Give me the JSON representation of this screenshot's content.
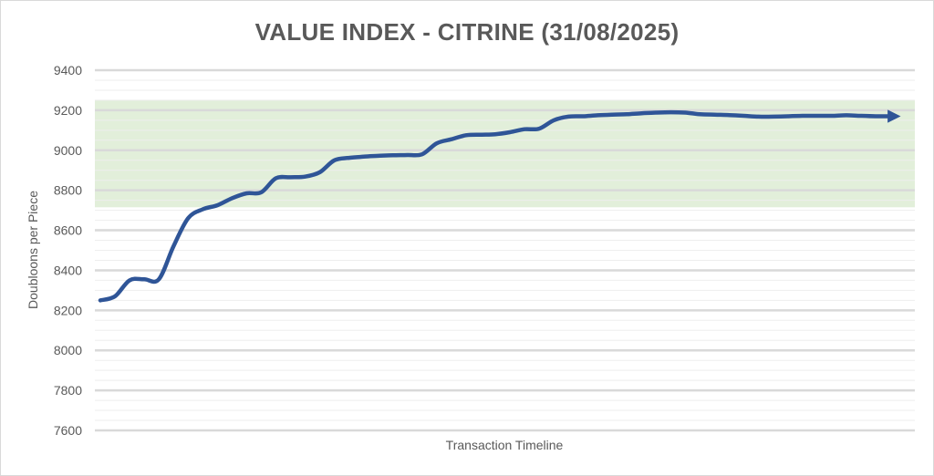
{
  "chart_data": {
    "type": "line",
    "title": "VALUE INDEX - CITRINE (31/08/2025)",
    "xlabel": "Transaction Timeline",
    "ylabel": "Doubloons per Piece",
    "ylim": [
      7600,
      9400
    ],
    "yticks": [
      7600,
      7800,
      8000,
      8200,
      8400,
      8600,
      8800,
      9000,
      9200,
      9400
    ],
    "minor_grid_step": 50,
    "grid": true,
    "band": {
      "y_low": 8715,
      "y_high": 9250,
      "color": "#e2efda"
    },
    "series": [
      {
        "color": "#2f5597",
        "arrow_end": true,
        "values": [
          8250,
          8270,
          8350,
          8355,
          8355,
          8520,
          8660,
          8705,
          8725,
          8760,
          8785,
          8790,
          8860,
          8865,
          8868,
          8890,
          8950,
          8962,
          8968,
          8972,
          8975,
          8976,
          8980,
          9035,
          9055,
          9075,
          9078,
          9080,
          9090,
          9105,
          9108,
          9150,
          9168,
          9170,
          9175,
          9178,
          9180,
          9185,
          9188,
          9190,
          9188,
          9180,
          9178,
          9176,
          9172,
          9168,
          9168,
          9170,
          9172,
          9172,
          9172,
          9175,
          9172,
          9170,
          9170
        ]
      }
    ]
  }
}
